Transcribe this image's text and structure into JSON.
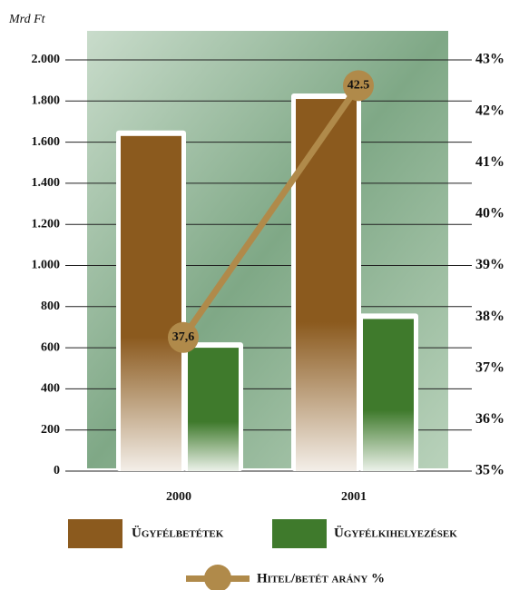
{
  "chart_data": {
    "type": "bar",
    "y_label": "Mrd Ft",
    "categories": [
      "2000",
      "2001"
    ],
    "series": [
      {
        "name": "Ügyfélbetétek",
        "color": "#8b5a1e",
        "values": [
          1630,
          1810
        ]
      },
      {
        "name": "Ügyfélkihelyezések",
        "color": "#3f7a2c",
        "values": [
          600,
          740
        ]
      },
      {
        "name": "Hitel/betét arány %",
        "type": "line",
        "axis": "y2",
        "color": "#b08a4a",
        "values": [
          37.6,
          42.5
        ],
        "value_labels": [
          "37,6",
          "42.5"
        ]
      }
    ],
    "ylim": [
      0,
      2000
    ],
    "yticks": [
      {
        "value": 0,
        "label": "0"
      },
      {
        "value": 200,
        "label": "200"
      },
      {
        "value": 400,
        "label": "400"
      },
      {
        "value": 600,
        "label": "600"
      },
      {
        "value": 800,
        "label": "800"
      },
      {
        "value": 1000,
        "label": "1.000"
      },
      {
        "value": 1200,
        "label": "1.200"
      },
      {
        "value": 1400,
        "label": "1.400"
      },
      {
        "value": 1600,
        "label": "1.600"
      },
      {
        "value": 1800,
        "label": "1.800"
      },
      {
        "value": 2000,
        "label": "2.000"
      }
    ],
    "y2lim": [
      35,
      43
    ],
    "y2ticks": [
      {
        "value": 35,
        "label": "35%"
      },
      {
        "value": 36,
        "label": "36%"
      },
      {
        "value": 37,
        "label": "37%"
      },
      {
        "value": 38,
        "label": "38%"
      },
      {
        "value": 39,
        "label": "39%"
      },
      {
        "value": 40,
        "label": "40%"
      },
      {
        "value": 41,
        "label": "41%"
      },
      {
        "value": 42,
        "label": "42%"
      },
      {
        "value": 43,
        "label": "43%"
      }
    ],
    "grid": true
  }
}
